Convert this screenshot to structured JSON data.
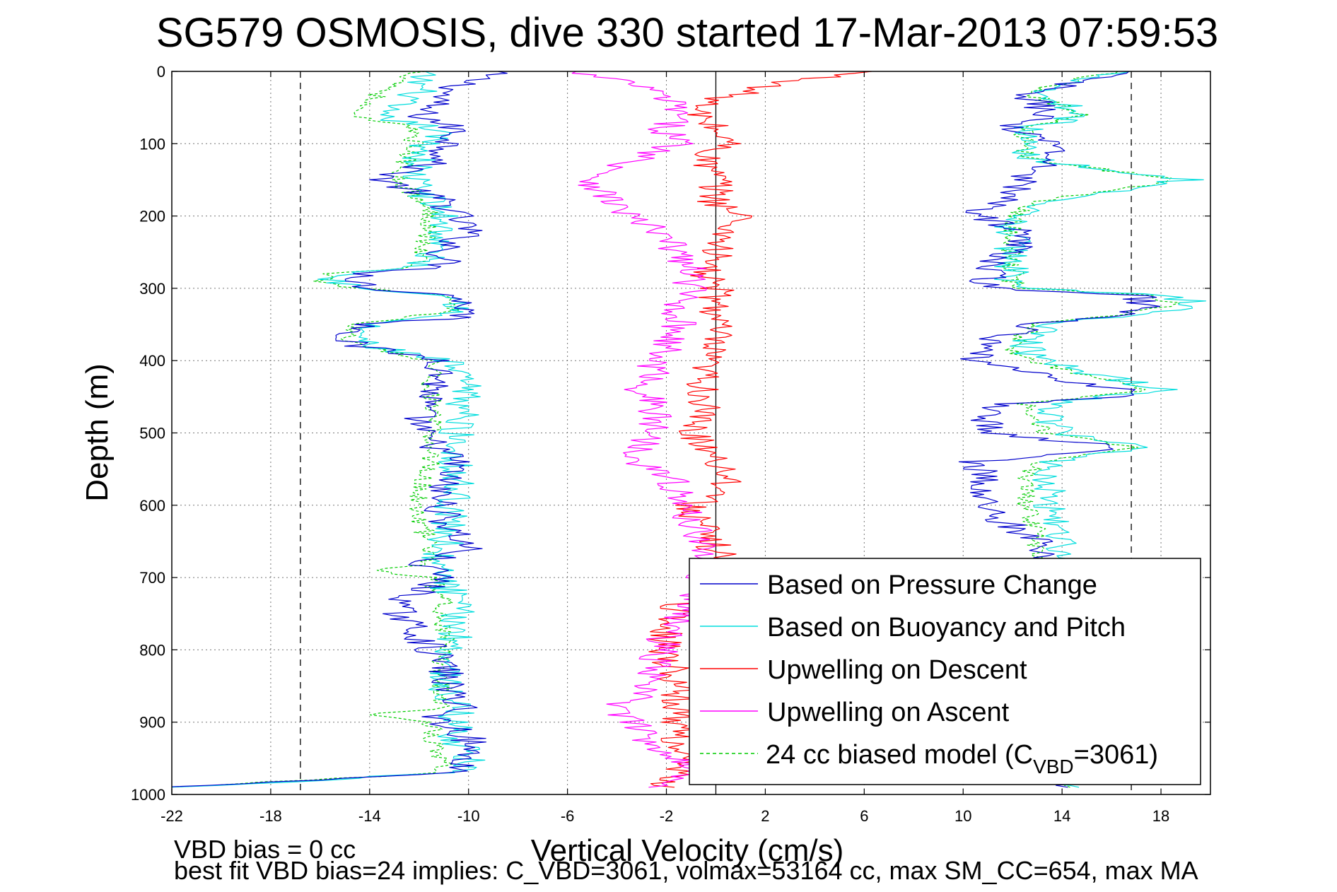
{
  "chart_data": {
    "type": "line",
    "title": "SG579 OSMOSIS, dive 330 started 17-Mar-2013 07:59:53",
    "xlabel": "Vertical Velocity (cm/s)",
    "ylabel": "Depth (m)",
    "xlim": [
      -22,
      20
    ],
    "ylim": [
      0,
      1000
    ],
    "y_reversed": true,
    "grid": true,
    "x_ticks": [
      -22,
      -18,
      -14,
      -10,
      -6,
      -2,
      2,
      6,
      10,
      14,
      18
    ],
    "y_ticks": [
      0,
      100,
      200,
      300,
      400,
      500,
      600,
      700,
      800,
      900,
      1000
    ],
    "legend_position": "bottom-right",
    "reference_lines": {
      "dashed_x": [
        -16.8,
        16.8
      ],
      "solid_x": [
        0
      ],
      "colors": {
        "dashed": "#000000",
        "solid": "#000000"
      }
    },
    "series": [
      {
        "name": "Based on Pressure Change",
        "color": "#0000cc",
        "style": "solid",
        "profiles": [
          {
            "depth": [
              0,
              30,
              60,
              80,
              120,
              150,
              180,
              200,
              220,
              250,
              270,
              280,
              290,
              300,
              310,
              330,
              340,
              350,
              370,
              380,
              400,
              430,
              470,
              500,
              540,
              580,
              620,
              660,
              680,
              700,
              740,
              780,
              820,
              860,
              880,
              890,
              900,
              920,
              950,
              970,
              990
            ],
            "x": [
              -9,
              -11,
              -12,
              -10.5,
              -11,
              -13.5,
              -11,
              -10.5,
              -10,
              -11,
              -11,
              -14,
              -14.5,
              -14,
              -10.5,
              -10,
              -10.2,
              -14,
              -15,
              -14.5,
              -11,
              -11.2,
              -12,
              -12,
              -10.5,
              -11.2,
              -11,
              -10,
              -12,
              -11,
              -13,
              -12,
              -11,
              -10.8,
              -10,
              -11.5,
              -11,
              -10,
              -10,
              -10.5,
              -22
            ]
          },
          {
            "depth": [
              0,
              30,
              60,
              80,
              100,
              120,
              150,
              180,
              200,
              220,
              250,
              270,
              290,
              300,
              310,
              330,
              350,
              380,
              400,
              420,
              440,
              450,
              460,
              480,
              500,
              520,
              540,
              560,
              580,
              600,
              620,
              650,
              680,
              700,
              740,
              780,
              820,
              860,
              900,
              950,
              990
            ],
            "x": [
              16.5,
              12.5,
              13.5,
              11.5,
              14,
              13.5,
              12.5,
              11.5,
              10.5,
              12.5,
              12,
              11,
              11,
              11.5,
              17,
              17.5,
              13,
              10.5,
              10.5,
              13,
              16.5,
              16.5,
              11.5,
              11,
              11,
              16.5,
              10.5,
              11,
              10.5,
              11,
              11.5,
              13,
              13,
              12.5,
              12.5,
              12.5,
              12.5,
              12.5,
              12.5,
              12.5,
              14
            ]
          }
        ]
      },
      {
        "name": "Based on Buoyancy and Pitch",
        "color": "#00dddd",
        "style": "solid",
        "profiles": [
          {
            "depth": [
              0,
              30,
              60,
              80,
              120,
              150,
              180,
              200,
              220,
              250,
              270,
              280,
              290,
              300,
              310,
              330,
              350,
              370,
              380,
              400,
              430,
              470,
              500,
              540,
              580,
              620,
              660,
              680,
              700,
              740,
              780,
              820,
              860,
              880,
              900,
              920,
              950,
              970,
              990
            ],
            "x": [
              -12,
              -12,
              -14,
              -11.2,
              -12,
              -12.2,
              -11.5,
              -11,
              -11,
              -11.5,
              -12,
              -15,
              -15.5,
              -14,
              -10.5,
              -10.2,
              -14,
              -14.5,
              -14,
              -11,
              -10.2,
              -10.2,
              -10.5,
              -10.5,
              -10.5,
              -10.8,
              -11,
              -11.5,
              -11,
              -10.5,
              -10.5,
              -10.8,
              -11,
              -10.5,
              -10.5,
              -10.5,
              -10,
              -10.5,
              -22
            ]
          },
          {
            "depth": [
              0,
              30,
              60,
              80,
              120,
              150,
              180,
              200,
              220,
              250,
              270,
              290,
              300,
              310,
              320,
              330,
              350,
              380,
              400,
              420,
              440,
              460,
              480,
              500,
              520,
              540,
              560,
              600,
              640,
              660,
              700,
              760,
              820,
              880,
              940,
              990
            ],
            "x": [
              16.5,
              13,
              15,
              12.5,
              12.5,
              19,
              13,
              12,
              12,
              12,
              12,
              12,
              12.5,
              18,
              19.5,
              18.5,
              13.5,
              12.5,
              13,
              15.5,
              18,
              13.5,
              13.5,
              14,
              17.5,
              13.5,
              13.5,
              13.5,
              14,
              14,
              13.5,
              13.5,
              13.5,
              13.5,
              13.5,
              14
            ]
          }
        ]
      },
      {
        "name": "Upwelling on Descent",
        "color": "#ff0000",
        "style": "solid",
        "profiles": [
          {
            "depth": [
              0,
              20,
              50,
              80,
              100,
              120,
              150,
              180,
              200,
              220,
              250,
              280,
              300,
              330,
              360,
              400,
              430,
              460,
              500,
              530,
              560,
              580,
              600,
              640,
              660,
              680,
              700,
              720,
              740,
              760,
              800,
              850,
              900,
              950,
              990
            ],
            "x": [
              6,
              2,
              -1,
              0,
              0.5,
              -0.5,
              0,
              0,
              1,
              0.5,
              0,
              -0.5,
              0,
              0,
              0,
              -0.5,
              -0.5,
              -0.5,
              -1,
              0,
              0.5,
              0.5,
              -1,
              -0.5,
              0,
              0.5,
              0.5,
              0,
              -1.5,
              -2,
              -2,
              -1.5,
              -1.5,
              -1.5,
              -2
            ]
          }
        ]
      },
      {
        "name": "Upwelling on Ascent",
        "color": "#ff00ff",
        "style": "solid",
        "profiles": [
          {
            "depth": [
              0,
              20,
              50,
              80,
              100,
              120,
              150,
              170,
              200,
              220,
              250,
              280,
              300,
              320,
              340,
              360,
              380,
              400,
              420,
              440,
              460,
              480,
              500,
              520,
              540,
              560,
              580,
              600,
              620,
              650,
              680,
              700,
              740,
              780,
              820,
              860,
              880,
              900,
              930,
              960,
              990
            ],
            "x": [
              -6,
              -3,
              -1.5,
              -2,
              -1.5,
              -3,
              -5,
              -4.5,
              -3.5,
              -2.5,
              -1.5,
              -1,
              -1,
              -1.5,
              -1.5,
              -1.5,
              -2,
              -2.5,
              -2.5,
              -3,
              -2.5,
              -2.5,
              -2.5,
              -3,
              -3,
              -2,
              -1.5,
              -1.5,
              -1,
              -0.5,
              -0.5,
              -0.5,
              -1,
              -2,
              -2.5,
              -3,
              -4,
              -3.5,
              -2.5,
              -1,
              -2
            ]
          }
        ]
      },
      {
        "name": "24 cc biased model (C_VBD=3061)",
        "color": "#00cc00",
        "style": "dashed",
        "profiles": [
          {
            "depth": [
              0,
              30,
              60,
              80,
              120,
              150,
              180,
              200,
              220,
              250,
              270,
              280,
              290,
              300,
              310,
              330,
              350,
              370,
              380,
              400,
              430,
              470,
              500,
              540,
              580,
              620,
              660,
              680,
              690,
              700,
              740,
              780,
              820,
              860,
              880,
              890,
              900,
              920,
              950,
              970,
              990
            ],
            "x": [
              -12,
              -13.5,
              -15,
              -12,
              -12.5,
              -12.8,
              -12,
              -11.5,
              -11.5,
              -12,
              -12,
              -15.5,
              -16,
              -14.5,
              -11,
              -10.5,
              -14.5,
              -15,
              -14.5,
              -11.5,
              -11.5,
              -11.5,
              -11.5,
              -11.5,
              -12,
              -12,
              -11.5,
              -11.5,
              -14,
              -11.5,
              -11,
              -11,
              -11.2,
              -11,
              -11,
              -14,
              -11.5,
              -11.5,
              -11,
              -11,
              -22
            ]
          },
          {
            "depth": [
              0,
              30,
              60,
              80,
              120,
              150,
              160,
              180,
              200,
              220,
              250,
              270,
              290,
              300,
              310,
              320,
              330,
              350,
              380,
              400,
              420,
              440,
              460,
              480,
              500,
              520,
              540,
              560,
              600,
              640,
              660,
              700,
              760,
              820,
              880,
              940,
              990
            ],
            "x": [
              16,
              12.5,
              15,
              12.5,
              12.5,
              18.5,
              17,
              13,
              12,
              12,
              12,
              12,
              12,
              12.5,
              17.5,
              18.5,
              17.5,
              13,
              12,
              12.5,
              15,
              17.5,
              12.5,
              12.5,
              13.5,
              17,
              13,
              12.5,
              12.5,
              13,
              13,
              12.5,
              12.5,
              12.5,
              12.5,
              12.5,
              14
            ]
          }
        ]
      }
    ]
  },
  "legend_labels": {
    "subscript": "VBD",
    "model_prefix": "24 cc biased model (C",
    "model_suffix": "=3061)"
  },
  "footnotes": {
    "line1": "VBD bias = 0 cc",
    "line2": "best fit VBD bias=24 implies: C_VBD=3061, volmax=53164 cc, max SM_CC=654, max MA"
  }
}
